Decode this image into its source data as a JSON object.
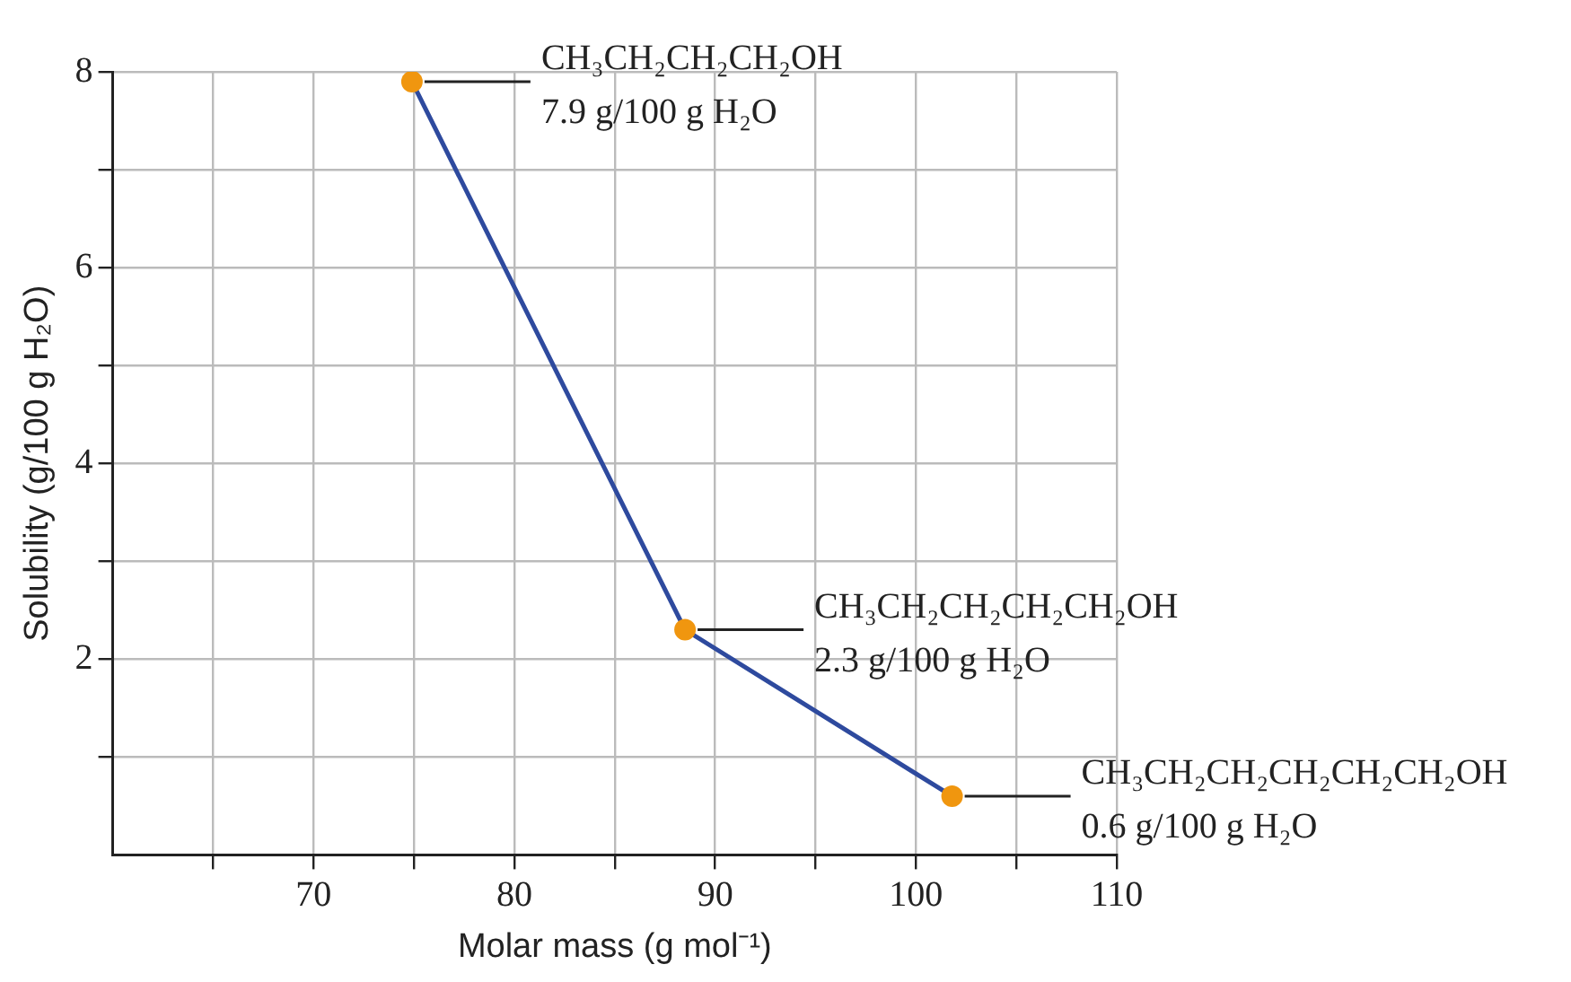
{
  "chart_data": {
    "type": "line",
    "xlabel": "Molar mass (g mol⁻¹)",
    "ylabel": "Solubility (g/100 g H₂O)",
    "x": [
      74.9,
      88.5,
      101.8
    ],
    "series": [
      {
        "color": "#2e4a9e",
        "colors": [
          "#f0960f",
          "#f0960f",
          "#f0960f"
        ],
        "values": [
          7.9,
          2.3,
          0.6
        ]
      }
    ],
    "marker": "circle",
    "xlim": [
      60,
      110
    ],
    "xticks": [
      {
        "value": 65,
        "label": null
      },
      70,
      {
        "value": 75,
        "label": null
      },
      80,
      {
        "value": 85,
        "label": null
      },
      90,
      {
        "value": 95,
        "label": null
      },
      100,
      {
        "value": 105,
        "label": null
      },
      110
    ],
    "ylim": [
      0,
      8
    ],
    "yticks": [
      {
        "value": 1,
        "label": null
      },
      2,
      {
        "value": 3,
        "label": null
      },
      4,
      {
        "value": 5,
        "label": null
      },
      6,
      {
        "value": 7,
        "label": null
      },
      8
    ],
    "grid": true,
    "legend": false,
    "annotations": [
      {
        "text": "CH₃CH₂CH₂CH₂OH",
        "x": 74.9,
        "y": 7.9
      },
      {
        "text": "7.9 g/100 g H₂O",
        "x": 74.9,
        "y": 7.9
      },
      {
        "text": "CH₃CH₂CH₂CH₂CH₂OH",
        "x": 88.5,
        "y": 2.3
      },
      {
        "text": "2.3 g/100 g H₂O",
        "x": 88.5,
        "y": 2.3
      },
      {
        "text": "CH₃CH₂CH₂CH₂CH₂CH₂OH",
        "x": 101.8,
        "y": 0.6
      },
      {
        "text": "0.6 g/100 g H₂O",
        "x": 101.8,
        "y": 0.6
      }
    ]
  }
}
